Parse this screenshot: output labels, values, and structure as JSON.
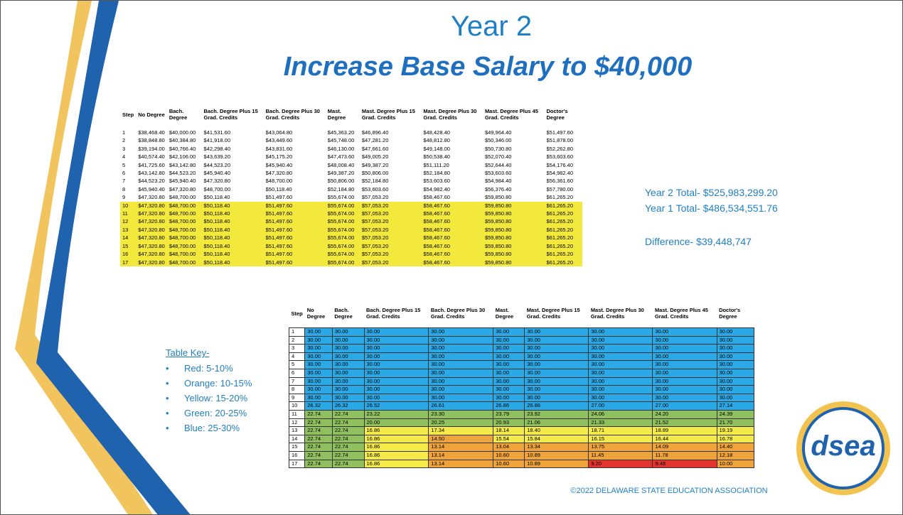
{
  "header": {
    "title": "Year 2",
    "subtitle": "Increase Base Salary to $40,000"
  },
  "table1": {
    "headers": [
      "Step",
      "No Degree",
      "Bach. Degree",
      "Bach. Degree Plus 15 Grad. Credits",
      "Bach. Degree Plus 30 Grad. Credits",
      "Mast. Degree",
      "Mast. Degree Plus 15 Grad. Credits",
      "Mast. Degree Plus 30 Grad. Credits",
      "Mast. Degree Plus 45 Grad. Credits",
      "Doctor's Degree"
    ],
    "rows": [
      {
        "step": "1",
        "cells": [
          "$38,468.40",
          "$40,000.00",
          "$41,531.60",
          "$43,064.80",
          "$45,363.20",
          "$46,896.40",
          "$48,428.40",
          "$49,964.40",
          "$51,497.60"
        ]
      },
      {
        "step": "2",
        "cells": [
          "$38,848.80",
          "$40,384.80",
          "$41,918.00",
          "$43,449.60",
          "$45,748.00",
          "$47,281.20",
          "$48,812.80",
          "$50,346.00",
          "$51,878.00"
        ]
      },
      {
        "step": "3",
        "cells": [
          "$39,194.00",
          "$40,766.40",
          "$42,298.40",
          "$43,831.60",
          "$46,130.00",
          "$47,661.60",
          "$49,148.00",
          "$50,730.80",
          "$52,262.80"
        ]
      },
      {
        "step": "4",
        "cells": [
          "$40,574.40",
          "$42,106.00",
          "$43,639.20",
          "$45,175.20",
          "$47,473.60",
          "$49,005.20",
          "$50,538.40",
          "$52,070.40",
          "$53,603.60"
        ]
      },
      {
        "step": "5",
        "cells": [
          "$41,725.60",
          "$43,142.80",
          "$44,523.20",
          "$45,940.40",
          "$48,008.40",
          "$49,387.20",
          "$51,111.20",
          "$52,644.40",
          "$54,176.40"
        ]
      },
      {
        "step": "6",
        "cells": [
          "$43,142.80",
          "$44,523.20",
          "$45,940.40",
          "$47,320.80",
          "$49,387.20",
          "$50,806.00",
          "$52,184.80",
          "$53,603.60",
          "$54,982.40"
        ]
      },
      {
        "step": "7",
        "cells": [
          "$44,523.20",
          "$45,940.40",
          "$47,320.80",
          "$48,700.00",
          "$50,806.00",
          "$52,184.80",
          "$53,603.60",
          "$54,984.40",
          "$56,361.60"
        ]
      },
      {
        "step": "8",
        "cells": [
          "$45,940.40",
          "$47,320.80",
          "$48,700.00",
          "$50,118.40",
          "$52,184.80",
          "$53,603.60",
          "$54,982.40",
          "$56,376.40",
          "$57,780.00"
        ]
      },
      {
        "step": "9",
        "cells": [
          "$47,320.80",
          "$48,700.00",
          "$50,118.40",
          "$51,497.60",
          "$55,674.00",
          "$57,053.20",
          "$58,467.60",
          "$59,850.80",
          "$61,265.20"
        ]
      },
      {
        "step": "10",
        "fill": "#f3e83c",
        "cells": [
          "$47,320.80",
          "$48,700.00",
          "$50,118.40",
          "$51,497.60",
          "$55,674.00",
          "$57,053.20",
          "$58,467.60",
          "$59,850.80",
          "$61,265.20"
        ]
      },
      {
        "step": "11",
        "fill": "#f3e83c",
        "cells": [
          "$47,320.80",
          "$48,700.00",
          "$50,118.40",
          "$51,497.60",
          "$55,674.00",
          "$57,053.20",
          "$58,467.60",
          "$59,850.80",
          "$61,265.20"
        ]
      },
      {
        "step": "12",
        "fill": "#f3e83c",
        "cells": [
          "$47,320.80",
          "$48,700.00",
          "$50,118.40",
          "$51,497.60",
          "$55,674.00",
          "$57,053.20",
          "$58,467.60",
          "$59,850.80",
          "$61,265.20"
        ]
      },
      {
        "step": "13",
        "fill": "#f3e83c",
        "cells": [
          "$47,320.80",
          "$48,700.00",
          "$50,118.40",
          "$51,497.60",
          "$55,674.00",
          "$57,053.20",
          "$58,467.60",
          "$59,850.80",
          "$61,265.20"
        ]
      },
      {
        "step": "14",
        "fill": "#f3e83c",
        "cells": [
          "$47,320.80",
          "$48,700.00",
          "$50,118.40",
          "$51,497.60",
          "$55,674.00",
          "$57,053.20",
          "$58,467.60",
          "$59,850.80",
          "$61,265.20"
        ]
      },
      {
        "step": "15",
        "fill": "#f3e83c",
        "cells": [
          "$47,320.80",
          "$48,700.00",
          "$50,118.40",
          "$51,497.60",
          "$55,674.00",
          "$57,053.20",
          "$58,467.60",
          "$59,850.80",
          "$61,265.20"
        ]
      },
      {
        "step": "16",
        "fill": "#f3e83c",
        "cells": [
          "$47,320.80",
          "$48,700.00",
          "$50,118.40",
          "$51,497.60",
          "$55,674.00",
          "$57,053.20",
          "$58,467.60",
          "$59,850.80",
          "$61,265.20"
        ]
      },
      {
        "step": "17",
        "fill": "#f3e83c",
        "cells": [
          "$47,320.80",
          "$48,700.00",
          "$50,118.40",
          "$51,497.60",
          "$55,674.00",
          "$57,053.20",
          "$58,467.60",
          "$59,850.80",
          "$61,265.20"
        ]
      }
    ]
  },
  "summary": [
    "Year 2 Total- $525,983,299.20",
    "Year 1 Total- $486,534,551.76",
    "Difference- $39,448,747"
  ],
  "key": {
    "title": "Table Key-",
    "items": [
      {
        "label": "Red: 5-10%",
        "color": "#e2342f",
        "min": 5
      },
      {
        "label": "Orange: 10-15%",
        "color": "#eea43a",
        "min": 10
      },
      {
        "label": "Yellow: 15-20%",
        "color": "#f4ea4a",
        "min": 15
      },
      {
        "label": "Green: 20-25%",
        "color": "#8fbf5e",
        "min": 20
      },
      {
        "label": "Blue: 25-30%",
        "color": "#2aa9e6",
        "min": 25
      }
    ]
  },
  "table2": {
    "headers": [
      "Step",
      "No Degree",
      "Bach. Degree",
      "Bach. Degree Plus 15 Grad. Credits",
      "Bach. Degree Plus 30 Grad. Credits",
      "Mast. Degree",
      "Mast. Degree Plus 15 Grad. Credits",
      "Mast. Degree Plus 30 Grad. Credits",
      "Mast. Degree Plus 45 Grad. Credits",
      "Doctor's Degree"
    ],
    "rows": [
      {
        "step": "1",
        "cells": [
          "30.00",
          "30.00",
          "30.00",
          "30.00",
          "30.00",
          "30.00",
          "30.00",
          "30.00",
          "30.00"
        ]
      },
      {
        "step": "2",
        "cells": [
          "30.00",
          "30.00",
          "30.00",
          "30.00",
          "30.00",
          "30.00",
          "30.00",
          "30.00",
          "30.00"
        ]
      },
      {
        "step": "3",
        "cells": [
          "30.00",
          "30.00",
          "30.00",
          "30.00",
          "30.00",
          "30.00",
          "30.00",
          "30.00",
          "30.00"
        ]
      },
      {
        "step": "4",
        "cells": [
          "30.00",
          "30.00",
          "30.00",
          "30.00",
          "30.00",
          "30.00",
          "30.00",
          "30.00",
          "30.00"
        ]
      },
      {
        "step": "5",
        "cells": [
          "30.00",
          "30.00",
          "30.00",
          "30.00",
          "30.00",
          "30.00",
          "30.00",
          "30.00",
          "30.00"
        ]
      },
      {
        "step": "6",
        "cells": [
          "30.00",
          "30.00",
          "30.00",
          "30.00",
          "30.00",
          "30.00",
          "30.00",
          "30.00",
          "30.00"
        ]
      },
      {
        "step": "7",
        "cells": [
          "30.00",
          "30.00",
          "30.00",
          "30.00",
          "30.00",
          "30.00",
          "30.00",
          "30.00",
          "30.00"
        ]
      },
      {
        "step": "8",
        "cells": [
          "30.00",
          "30.00",
          "30.00",
          "30.00",
          "30.00",
          "30.00",
          "30.00",
          "30.00",
          "30.00"
        ]
      },
      {
        "step": "9",
        "cells": [
          "30.00",
          "30.00",
          "30.00",
          "30.00",
          "30.00",
          "30.00",
          "30.00",
          "30.00",
          "30.00"
        ]
      },
      {
        "step": "10",
        "cells": [
          "26.32",
          "26.32",
          "26.52",
          "26.61",
          "26.86",
          "26.86",
          "27.00",
          "27.00",
          "27.14"
        ]
      },
      {
        "step": "11",
        "cells": [
          "22.74",
          "22.74",
          "23.22",
          "23.30",
          "23.79",
          "23.92",
          "24.06",
          "24.20",
          "24.39"
        ]
      },
      {
        "step": "12",
        "cells": [
          "22.74",
          "22.74",
          "20.00",
          "20.25",
          "20.93",
          "21.06",
          "21.33",
          "21.52",
          "21.70"
        ]
      },
      {
        "step": "13",
        "cells": [
          "22.74",
          "22.74",
          "16.86",
          "17.34",
          "18.14",
          "18.40",
          "18.71",
          "18.89",
          "19.19"
        ]
      },
      {
        "step": "14",
        "cells": [
          "22.74",
          "22.74",
          "16.86",
          "14.50",
          "15.54",
          "15.84",
          "16.15",
          "16.44",
          "16.78"
        ]
      },
      {
        "step": "15",
        "cells": [
          "22.74",
          "22.74",
          "16.86",
          "13.14",
          "13.04",
          "13.34",
          "13.75",
          "14.09",
          "14.40"
        ]
      },
      {
        "step": "16",
        "cells": [
          "22.74",
          "22.74",
          "16.86",
          "13.14",
          "10.60",
          "10.89",
          "11.45",
          "11.78",
          "12.18"
        ]
      },
      {
        "step": "17",
        "cells": [
          "22.74",
          "22.74",
          "16.86",
          "13.14",
          "10.60",
          "10.89",
          "9.20",
          "9.48",
          "10.00"
        ]
      }
    ]
  },
  "logo": "dsea",
  "footer": "©2022 DELAWARE STATE EDUCATION ASSOCIATION"
}
